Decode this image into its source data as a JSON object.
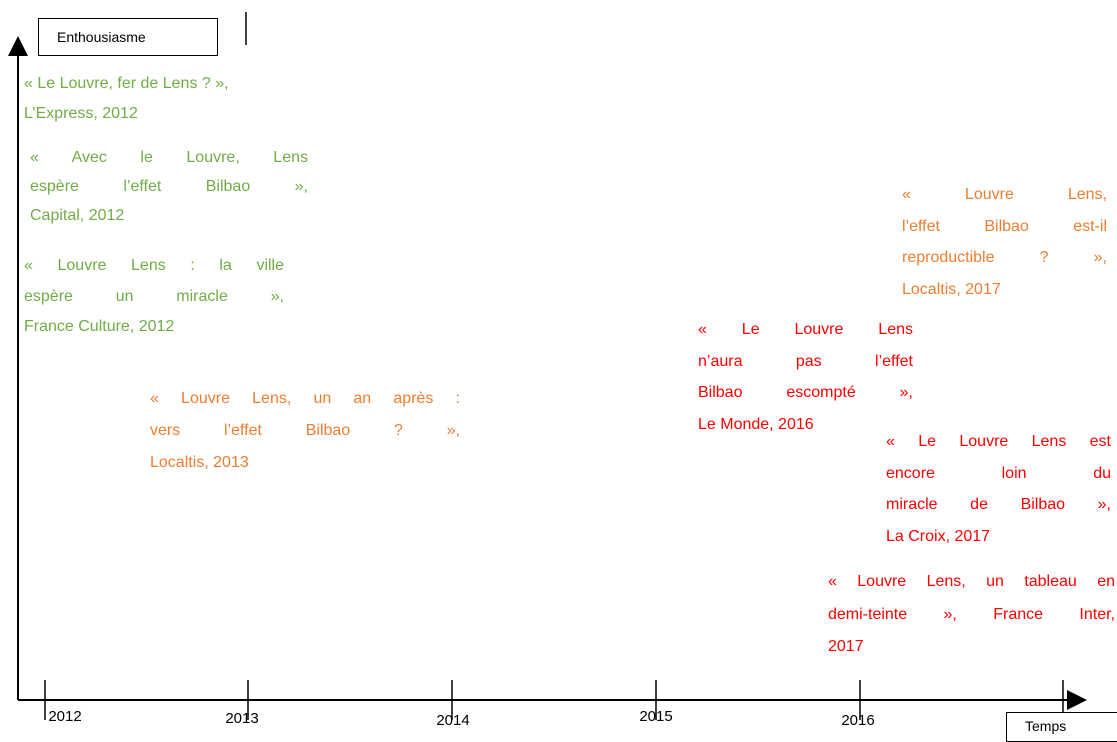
{
  "y_axis_label": "Enthousiasme",
  "x_axis_label": "Temps",
  "years": [
    "2012",
    "2013",
    "2014",
    "2015",
    "2016"
  ],
  "quotes": [
    {
      "color": "#70ad47",
      "lines": [
        "« Le Louvre, fer de Lens ? »,",
        "L’Express, 2012"
      ]
    },
    {
      "color": "#70ad47",
      "lines": [
        "« Avec le Louvre, Lens",
        "espère l’effet Bilbao »,",
        "Capital, 2012"
      ]
    },
    {
      "color": "#70ad47",
      "lines": [
        "« Louvre Lens : la ville",
        "espère un miracle »,",
        "France Culture, 2012"
      ]
    },
    {
      "color": "#ed7d31",
      "lines": [
        "« Louvre Lens, un an après :",
        "vers l’effet Bilbao ? »,",
        "Localtis, 2013"
      ]
    },
    {
      "color": "#ed7d31",
      "lines": [
        "« Louvre Lens,",
        "l’effet Bilbao est-il",
        "reproductible ? »,",
        "Localtis, 2017"
      ]
    },
    {
      "color": "#ff0000",
      "lines": [
        "« Le Louvre Lens",
        "n’aura pas l’effet",
        "Bilbao escompté »,",
        "Le Monde, 2016"
      ]
    },
    {
      "color": "#ff0000",
      "lines": [
        "« Le Louvre Lens est",
        "encore loin du",
        "miracle de Bilbao »,",
        "La Croix, 2017"
      ]
    },
    {
      "color": "#ff0000",
      "lines": [
        "« Louvre Lens, un tableau en",
        "demi-teinte », France Inter,",
        "2017"
      ]
    }
  ]
}
